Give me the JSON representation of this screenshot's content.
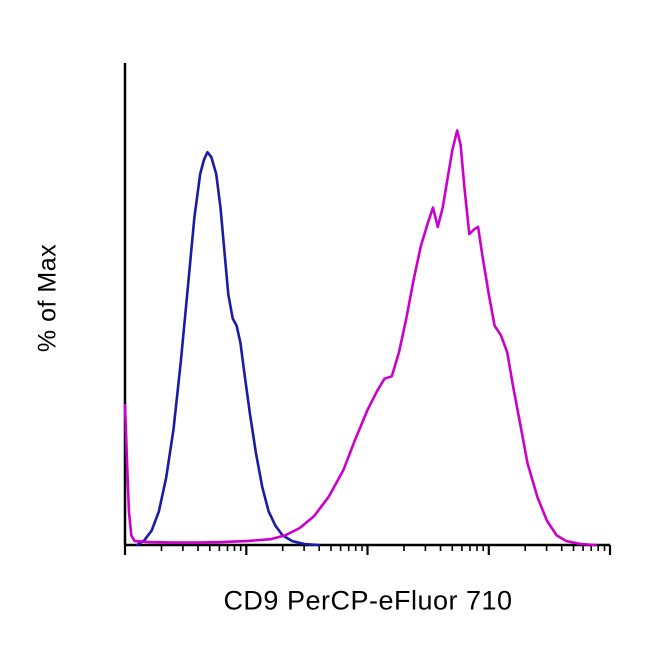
{
  "chart_data": {
    "type": "line",
    "subtype": "flow-cytometry-overlay-histogram",
    "title": "",
    "xlabel": "CD9 PerCP-eFluor 710",
    "ylabel": "% of Max",
    "x_scale": "log",
    "x_decades": 4,
    "x_tick_labels": [],
    "y_tick_labels": [],
    "grid": false,
    "legend": false,
    "axis_color": "#000000",
    "background": "#ffffff",
    "y_unit": "fraction of max peak (0-1)",
    "x_unit": "normalized position along log axis (0-1)",
    "series": [
      {
        "name": "blue-histogram",
        "color": "#1b1ba8",
        "peak_x": 0.17,
        "peak_y": 0.815,
        "points": [
          [
            0.025,
            0.0
          ],
          [
            0.04,
            0.01
          ],
          [
            0.055,
            0.03
          ],
          [
            0.07,
            0.07
          ],
          [
            0.085,
            0.14
          ],
          [
            0.1,
            0.24
          ],
          [
            0.115,
            0.38
          ],
          [
            0.13,
            0.54
          ],
          [
            0.143,
            0.68
          ],
          [
            0.155,
            0.77
          ],
          [
            0.163,
            0.8
          ],
          [
            0.17,
            0.815
          ],
          [
            0.178,
            0.805
          ],
          [
            0.188,
            0.77
          ],
          [
            0.197,
            0.7
          ],
          [
            0.205,
            0.61
          ],
          [
            0.213,
            0.52
          ],
          [
            0.222,
            0.47
          ],
          [
            0.23,
            0.455
          ],
          [
            0.238,
            0.42
          ],
          [
            0.247,
            0.35
          ],
          [
            0.258,
            0.27
          ],
          [
            0.27,
            0.19
          ],
          [
            0.283,
            0.12
          ],
          [
            0.296,
            0.07
          ],
          [
            0.31,
            0.04
          ],
          [
            0.325,
            0.02
          ],
          [
            0.345,
            0.008
          ],
          [
            0.37,
            0.002
          ],
          [
            0.4,
            0.0
          ]
        ]
      },
      {
        "name": "magenta-histogram",
        "color": "#cc00cc",
        "peak_x": 0.69,
        "peak_y": 0.86,
        "points": [
          [
            0.0,
            0.29
          ],
          [
            0.004,
            0.18
          ],
          [
            0.008,
            0.07
          ],
          [
            0.013,
            0.02
          ],
          [
            0.02,
            0.008
          ],
          [
            0.05,
            0.006
          ],
          [
            0.1,
            0.005
          ],
          [
            0.15,
            0.005
          ],
          [
            0.2,
            0.006
          ],
          [
            0.25,
            0.008
          ],
          [
            0.3,
            0.012
          ],
          [
            0.33,
            0.02
          ],
          [
            0.36,
            0.035
          ],
          [
            0.39,
            0.06
          ],
          [
            0.42,
            0.1
          ],
          [
            0.45,
            0.155
          ],
          [
            0.475,
            0.22
          ],
          [
            0.5,
            0.28
          ],
          [
            0.52,
            0.32
          ],
          [
            0.535,
            0.345
          ],
          [
            0.55,
            0.35
          ],
          [
            0.565,
            0.4
          ],
          [
            0.58,
            0.47
          ],
          [
            0.595,
            0.55
          ],
          [
            0.61,
            0.62
          ],
          [
            0.625,
            0.67
          ],
          [
            0.635,
            0.7
          ],
          [
            0.645,
            0.66
          ],
          [
            0.655,
            0.7
          ],
          [
            0.665,
            0.76
          ],
          [
            0.675,
            0.82
          ],
          [
            0.685,
            0.86
          ],
          [
            0.692,
            0.83
          ],
          [
            0.7,
            0.74
          ],
          [
            0.71,
            0.645
          ],
          [
            0.72,
            0.655
          ],
          [
            0.728,
            0.66
          ],
          [
            0.737,
            0.6
          ],
          [
            0.75,
            0.52
          ],
          [
            0.762,
            0.455
          ],
          [
            0.775,
            0.435
          ],
          [
            0.788,
            0.4
          ],
          [
            0.8,
            0.33
          ],
          [
            0.815,
            0.25
          ],
          [
            0.83,
            0.17
          ],
          [
            0.85,
            0.1
          ],
          [
            0.87,
            0.05
          ],
          [
            0.89,
            0.02
          ],
          [
            0.91,
            0.008
          ],
          [
            0.94,
            0.002
          ],
          [
            0.97,
            0.0
          ]
        ]
      }
    ]
  }
}
